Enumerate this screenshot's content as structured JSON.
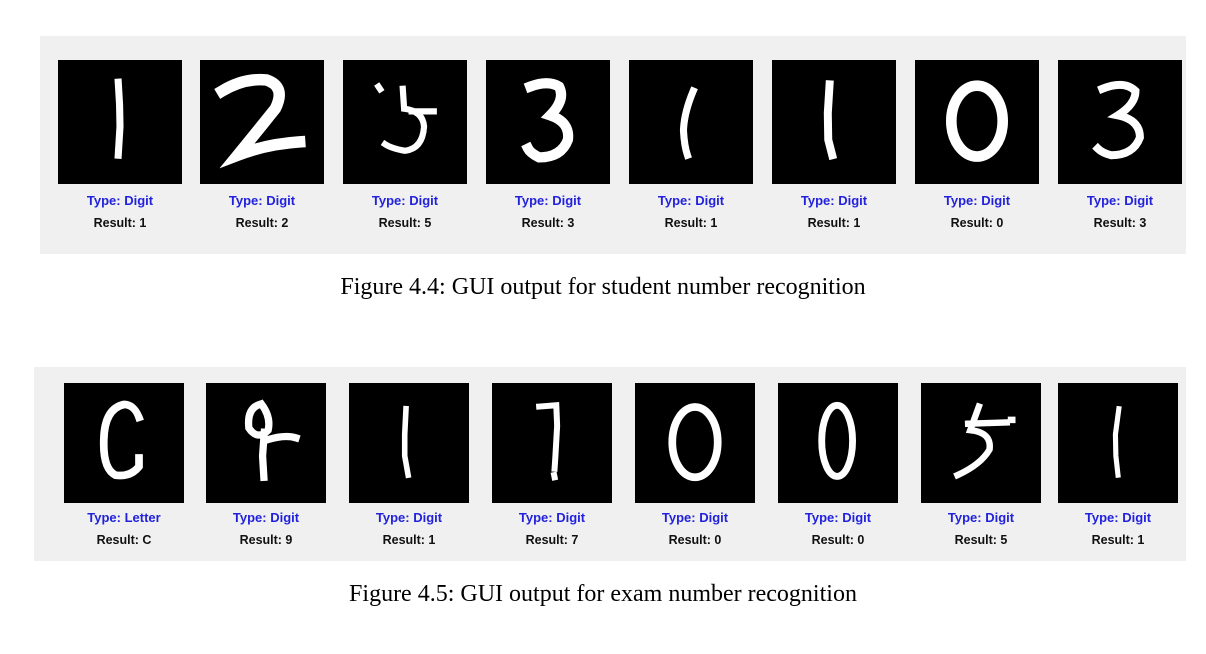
{
  "figure_1": {
    "caption": "Figure 4.4: GUI output for student number recognition",
    "items": [
      {
        "type_label": "Type: Digit",
        "result_label": "Result: 1"
      },
      {
        "type_label": "Type: Digit",
        "result_label": "Result: 2"
      },
      {
        "type_label": "Type: Digit",
        "result_label": "Result: 5"
      },
      {
        "type_label": "Type: Digit",
        "result_label": "Result: 3"
      },
      {
        "type_label": "Type: Digit",
        "result_label": "Result: 1"
      },
      {
        "type_label": "Type: Digit",
        "result_label": "Result: 1"
      },
      {
        "type_label": "Type: Digit",
        "result_label": "Result: 0"
      },
      {
        "type_label": "Type: Digit",
        "result_label": "Result: 3"
      }
    ]
  },
  "figure_2": {
    "caption": "Figure 4.5: GUI output for exam number recognition",
    "items": [
      {
        "type_label": "Type: Letter",
        "result_label": "Result: C"
      },
      {
        "type_label": "Type: Digit",
        "result_label": "Result: 9"
      },
      {
        "type_label": "Type: Digit",
        "result_label": "Result: 1"
      },
      {
        "type_label": "Type: Digit",
        "result_label": "Result: 7"
      },
      {
        "type_label": "Type: Digit",
        "result_label": "Result: 0"
      },
      {
        "type_label": "Type: Digit",
        "result_label": "Result: 0"
      },
      {
        "type_label": "Type: Digit",
        "result_label": "Result: 5"
      },
      {
        "type_label": "Type: Digit",
        "result_label": "Result: 1"
      }
    ]
  },
  "colors": {
    "panel_background": "#f0f0f0",
    "type_text": "#2222dd",
    "result_text": "#111111",
    "thumbnail_background": "#000000",
    "stroke": "#ffffff"
  }
}
